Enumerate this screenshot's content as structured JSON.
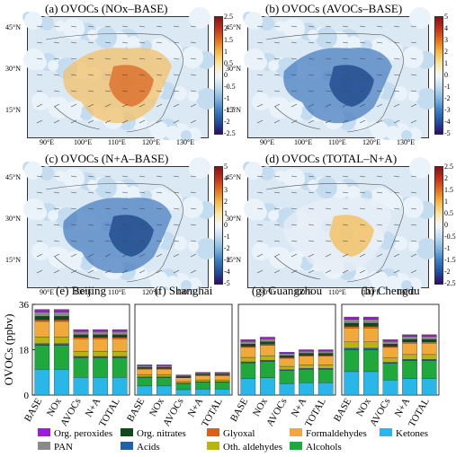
{
  "maps": [
    {
      "title": "(a) OVOCs (NOx–BASE)",
      "cbar_ticks": [
        "2.5",
        "2",
        "1.5",
        "1",
        "0.5",
        "0",
        "-0.5",
        "-1",
        "-1.5",
        "-2",
        "-2.5"
      ],
      "lat_labels": [
        "45°N",
        "30°N",
        "15°N"
      ],
      "lon_labels": [
        "90°E",
        "100°E",
        "110°E",
        "120°E",
        "130°E"
      ]
    },
    {
      "title": "(b) OVOCs (AVOCs–BASE)",
      "cbar_ticks": [
        "5",
        "4",
        "3",
        "2",
        "1",
        "0",
        "-1",
        "-2",
        "-3",
        "-4",
        "-5"
      ],
      "lat_labels": [
        "45°N",
        "30°N",
        "15°N"
      ],
      "lon_labels": [
        "90°E",
        "100°E",
        "110°E",
        "120°E",
        "130°E"
      ]
    },
    {
      "title": "(c) OVOCs (N+A–BASE)",
      "cbar_ticks": [
        "5",
        "4",
        "3",
        "2",
        "1",
        "0",
        "-1",
        "-2",
        "-3",
        "-4",
        "-5"
      ],
      "lat_labels": [
        "45°N",
        "30°N",
        "15°N"
      ],
      "lon_labels": [
        "90°E",
        "100°E",
        "110°E",
        "120°E",
        "130°E"
      ]
    },
    {
      "title": "(d) OVOCs (TOTAL–N+A)",
      "cbar_ticks": [
        "2.5",
        "2",
        "1.5",
        "1",
        "0.5",
        "0",
        "-0.5",
        "-1",
        "-1.5",
        "-2",
        "-2.5"
      ],
      "lat_labels": [
        "45°N",
        "30°N",
        "15°N"
      ],
      "lon_labels": [
        "90°E",
        "100°E",
        "110°E",
        "120°E",
        "130°E"
      ]
    }
  ],
  "chart_data": {
    "type": "bar",
    "stacked": true,
    "ylabel": "OVOCs (ppbv)",
    "ylim": [
      0,
      36
    ],
    "yticks": [
      0,
      18,
      36
    ],
    "categories": [
      "BASE",
      "NOx",
      "AVOCs",
      "N+A",
      "TOTAL"
    ],
    "panels": [
      {
        "title": "(e) Beijing",
        "totals": [
          34,
          34,
          26,
          26,
          26
        ]
      },
      {
        "title": "(f) Shanghai",
        "totals": [
          12,
          12,
          8,
          9,
          9
        ]
      },
      {
        "title": "(g) Guangzhou",
        "totals": [
          22,
          23,
          17,
          18,
          18
        ]
      },
      {
        "title": "(h) Chengdu",
        "totals": [
          31,
          31,
          22,
          24,
          24
        ]
      }
    ],
    "series": [
      {
        "name": "Ketones",
        "color": "#29b6e8",
        "fractions": [
          0.3,
          0.3,
          0.27,
          0.27,
          0.27
        ]
      },
      {
        "name": "Alcohols",
        "color": "#1fa83b",
        "fractions": [
          0.28,
          0.28,
          0.3,
          0.3,
          0.3
        ]
      },
      {
        "name": "Acids",
        "color": "#2161a8",
        "fractions": [
          0.02,
          0.02,
          0.02,
          0.02,
          0.02
        ]
      },
      {
        "name": "Oth. aldehydes",
        "color": "#b8b317",
        "fractions": [
          0.08,
          0.08,
          0.08,
          0.08,
          0.08
        ]
      },
      {
        "name": "Formaldehydes",
        "color": "#f0a93a",
        "fractions": [
          0.18,
          0.18,
          0.19,
          0.19,
          0.19
        ]
      },
      {
        "name": "Glyoxal",
        "color": "#d9601c",
        "fractions": [
          0.02,
          0.02,
          0.02,
          0.02,
          0.02
        ]
      },
      {
        "name": "Org. nitrates",
        "color": "#0f4a1a",
        "fractions": [
          0.04,
          0.04,
          0.04,
          0.04,
          0.04
        ]
      },
      {
        "name": "PAN",
        "color": "#8a8a8a",
        "fractions": [
          0.05,
          0.05,
          0.05,
          0.05,
          0.05
        ]
      },
      {
        "name": "Org. peroxides",
        "color": "#9b1fcf",
        "fractions": [
          0.03,
          0.03,
          0.03,
          0.03,
          0.03
        ]
      }
    ]
  },
  "legend": [
    {
      "name": "Org. peroxides",
      "color": "#9b1fcf"
    },
    {
      "name": "Org. nitrates",
      "color": "#0f4a1a"
    },
    {
      "name": "Glyoxal",
      "color": "#d9601c"
    },
    {
      "name": "Formaldehydes",
      "color": "#f0a93a"
    },
    {
      "name": "Ketones",
      "color": "#29b6e8"
    },
    {
      "name": "PAN",
      "color": "#8a8a8a"
    },
    {
      "name": "Acids",
      "color": "#2161a8"
    },
    {
      "name": "Oth. aldehydes",
      "color": "#b8b317"
    },
    {
      "name": "Alcohols",
      "color": "#1fa83b"
    }
  ]
}
